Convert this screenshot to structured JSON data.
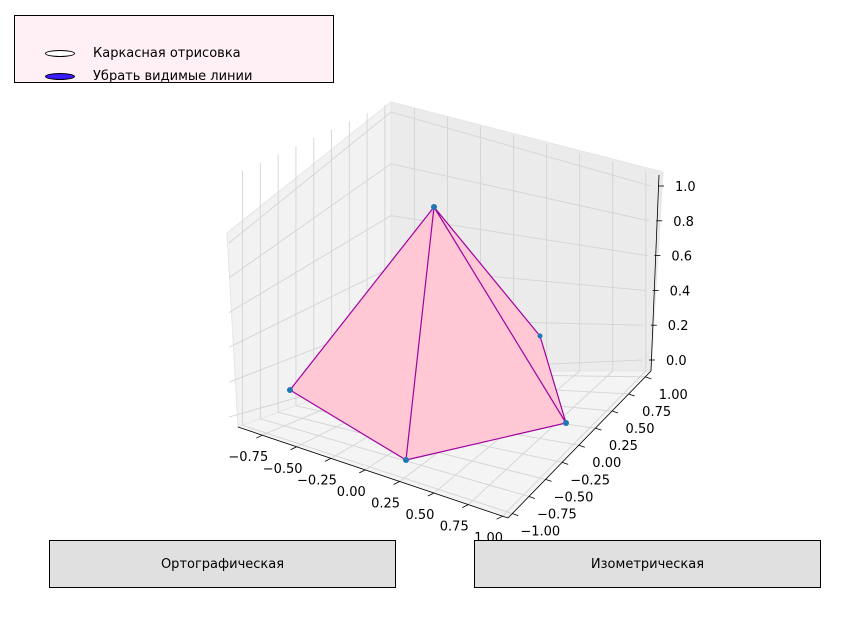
{
  "radio": {
    "options": [
      {
        "label": "Каркасная отрисовка",
        "selected": false
      },
      {
        "label": "Убрать видимые линии",
        "selected": true
      }
    ],
    "selected_color": "#3a1aff"
  },
  "buttons": {
    "ortho_label": "Ортографическая",
    "iso_label": "Изометрическая"
  },
  "plot": {
    "type": "3d-surface-pyramid",
    "face_color": "#ffc8d4",
    "edge_color": "#a000a0",
    "vertex_color": "#1f77b4",
    "x_ticks": [
      "−0.75",
      "−0.50",
      "−0.25",
      "0.00",
      "0.25",
      "0.50",
      "0.75",
      "1.00"
    ],
    "y_ticks": [
      "1.00",
      "0.75",
      "0.50",
      "0.25",
      "0.00",
      "−0.25",
      "−0.50",
      "−0.75",
      "−1.00"
    ],
    "z_ticks": [
      "1.0",
      "0.8",
      "0.6",
      "0.4",
      "0.2",
      "0.0"
    ]
  }
}
